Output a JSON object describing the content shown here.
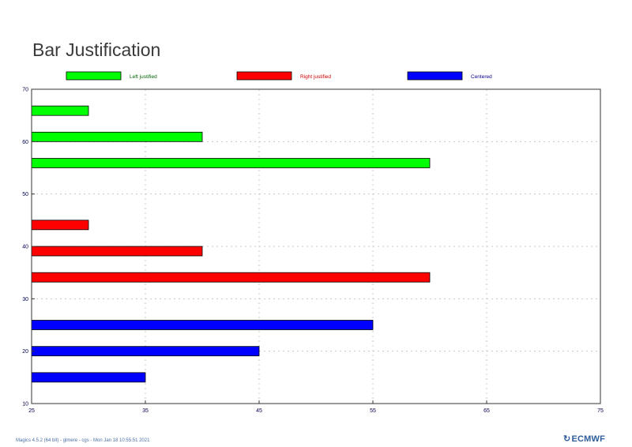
{
  "chart_data": {
    "type": "bar",
    "orientation": "horizontal",
    "title": "Bar Justification",
    "xlim": [
      25,
      75
    ],
    "ylim": [
      10,
      70
    ],
    "xticks": [
      25,
      35,
      45,
      55,
      65,
      75
    ],
    "yticks": [
      10,
      20,
      30,
      40,
      50,
      60,
      70
    ],
    "grid": true,
    "legend_position": "top",
    "series": [
      {
        "name": "Left justified",
        "color": "#00ff00",
        "justification": "left",
        "bars": [
          {
            "y": 65,
            "x": 30
          },
          {
            "y": 60,
            "x": 40
          },
          {
            "y": 55,
            "x": 60
          }
        ]
      },
      {
        "name": "Right justified",
        "color": "#ff0000",
        "justification": "right",
        "bars": [
          {
            "y": 45,
            "x": 30
          },
          {
            "y": 40,
            "x": 40
          },
          {
            "y": 35,
            "x": 60
          }
        ]
      },
      {
        "name": "Centered",
        "color": "#0000ff",
        "justification": "center",
        "bars": [
          {
            "y": 25,
            "x": 55
          },
          {
            "y": 20,
            "x": 45
          },
          {
            "y": 15,
            "x": 35
          }
        ]
      }
    ]
  },
  "footer": {
    "text": "Magics 4.5.2 (64 bit) - glmere - cgs - Mon Jan 18 10:55:51 2021"
  },
  "logo": {
    "text": "ECMWF"
  },
  "colors": {
    "legend_text_green": "#006400",
    "legend_text_red": "#cc0000",
    "legend_text_blue": "#00008b",
    "axis_text": "#00004d"
  }
}
